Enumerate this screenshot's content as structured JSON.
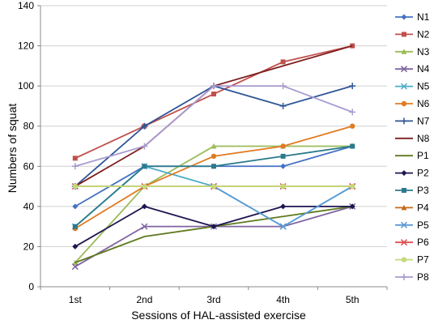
{
  "chart_data": {
    "type": "line",
    "categories": [
      "1st",
      "2nd",
      "3rd",
      "4th",
      "5th"
    ],
    "xlabel": "Sessions of HAL-assisted exercise",
    "ylabel": "Numbers of squat",
    "ylim": [
      0,
      140
    ],
    "yticks": [
      0,
      20,
      40,
      60,
      80,
      100,
      120,
      140
    ],
    "grid": true,
    "legend": "right",
    "series": [
      {
        "name": "N1",
        "color": "#4472C4",
        "marker": "diamond",
        "values": [
          40,
          60,
          60,
          60,
          70
        ]
      },
      {
        "name": "N2",
        "color": "#C0504D",
        "marker": "square",
        "values": [
          64,
          80,
          96,
          112,
          120
        ]
      },
      {
        "name": "N3",
        "color": "#9BBB59",
        "marker": "triangle",
        "values": [
          12,
          50,
          70,
          70,
          70
        ]
      },
      {
        "name": "N4",
        "color": "#8064A2",
        "marker": "x",
        "values": [
          10,
          30,
          30,
          30,
          40
        ]
      },
      {
        "name": "N5",
        "color": "#4BACC6",
        "marker": "x",
        "values": [
          30,
          60,
          50,
          30,
          50
        ]
      },
      {
        "name": "N6",
        "color": "#E07B23",
        "marker": "circle",
        "values": [
          29,
          50,
          65,
          70,
          80
        ]
      },
      {
        "name": "N7",
        "color": "#2E5597",
        "marker": "plus",
        "values": [
          50,
          80,
          100,
          90,
          100
        ]
      },
      {
        "name": "N8",
        "color": "#7F1F1F",
        "marker": "none",
        "values": [
          50,
          70,
          100,
          110,
          120
        ]
      },
      {
        "name": "P1",
        "color": "#5E7A1E",
        "marker": "none",
        "values": [
          12,
          25,
          30,
          35,
          40
        ]
      },
      {
        "name": "P2",
        "color": "#1F1650",
        "marker": "diamond",
        "values": [
          20,
          40,
          30,
          40,
          40
        ]
      },
      {
        "name": "P3",
        "color": "#2A7A8C",
        "marker": "square",
        "values": [
          30,
          60,
          60,
          65,
          70
        ]
      },
      {
        "name": "P4",
        "color": "#C46A1A",
        "marker": "triangle",
        "values": [
          50,
          50,
          50,
          50,
          50
        ]
      },
      {
        "name": "P5",
        "color": "#5B9BD5",
        "marker": "x",
        "values": [
          50,
          50,
          50,
          30,
          50
        ]
      },
      {
        "name": "P6",
        "color": "#E05050",
        "marker": "x",
        "values": [
          50,
          50,
          50,
          50,
          50
        ]
      },
      {
        "name": "P7",
        "color": "#C4D97A",
        "marker": "circle",
        "values": [
          50,
          50,
          50,
          50,
          50
        ]
      },
      {
        "name": "P8",
        "color": "#A89BD0",
        "marker": "plus",
        "values": [
          60,
          70,
          100,
          100,
          87
        ]
      }
    ]
  }
}
